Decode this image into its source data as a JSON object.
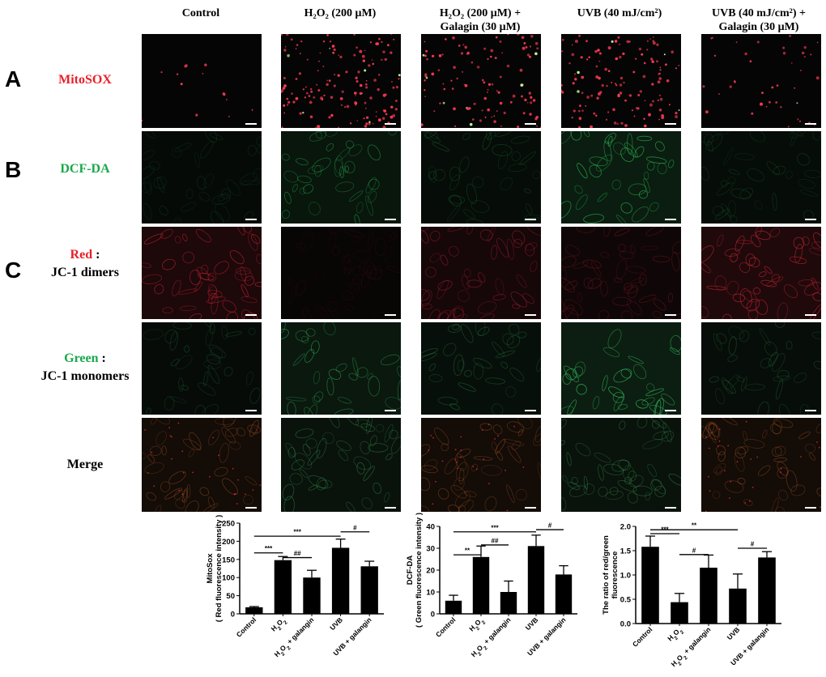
{
  "columns": [
    {
      "line1": "Control",
      "line2": ""
    },
    {
      "line1": "H₂O₂ (200 μM)",
      "line2": ""
    },
    {
      "line1": "H₂O₂ (200 μM) +",
      "line2": "Galagin (30 μM)"
    },
    {
      "line1": "UVB (40 mJ/cm²)",
      "line2": ""
    },
    {
      "line1": "UVB (40 mJ/cm²) +",
      "line2": "Galagin (30 μM)"
    }
  ],
  "panel_letters": {
    "a": "A",
    "b": "B",
    "c": "C"
  },
  "row_labels": {
    "mitosox": "MitoSOX",
    "dcfda": "DCF-DA",
    "red_word": "Red",
    "red_rest": " :",
    "red_line2": "JC-1 dimers",
    "green_word": "Green",
    "green_rest": " :",
    "green_line2": "JC-1 monomers",
    "merge": "Merge"
  },
  "colors": {
    "red": "#e8202a",
    "green": "#1aa84a",
    "bar": "#000000"
  },
  "chart_data": [
    {
      "type": "bar",
      "ylabel": "MitoSox",
      "ylabel2": "( Red fluorescence intensity )",
      "categories": [
        "Control",
        "H2O2",
        "H2O2 + galangin",
        "UVB",
        "UVB + galangin"
      ],
      "values": [
        18,
        148,
        100,
        182,
        131
      ],
      "errors": [
        2,
        10,
        20,
        24,
        14
      ],
      "ylim": [
        0,
        250
      ],
      "yticks": [
        "0",
        "50",
        "100",
        "150",
        "200",
        "250"
      ],
      "brackets": [
        {
          "from": 0,
          "to": 1,
          "y": 168,
          "label": "***"
        },
        {
          "from": 0,
          "to": 3,
          "y": 214,
          "label": "***"
        },
        {
          "from": 1,
          "to": 2,
          "y": 155,
          "label": "##"
        },
        {
          "from": 3,
          "to": 4,
          "y": 226,
          "label": "#"
        }
      ]
    },
    {
      "type": "bar",
      "ylabel": "DCF-DA",
      "ylabel2": "( Green fluorescence intensity )",
      "categories": [
        "Control",
        "H2O2",
        "H2O2 + galangin",
        "UVB",
        "UVB + galangin"
      ],
      "values": [
        6,
        26,
        10,
        31,
        18
      ],
      "errors": [
        2.5,
        5,
        5,
        5,
        4
      ],
      "ylim": [
        0,
        40
      ],
      "yticks": [
        "0",
        "10",
        "20",
        "30",
        "40"
      ],
      "brackets": [
        {
          "from": 0,
          "to": 1,
          "y": 27,
          "label": "**"
        },
        {
          "from": 0,
          "to": 3,
          "y": 37.5,
          "label": "***"
        },
        {
          "from": 1,
          "to": 2,
          "y": 31.5,
          "label": "##"
        },
        {
          "from": 3,
          "to": 4,
          "y": 38.5,
          "label": "#"
        }
      ]
    },
    {
      "type": "bar",
      "ylabel": "The ratio of red/green",
      "ylabel2": "fluorescence",
      "categories": [
        "Control",
        "H2O2",
        "H2O2 + galangin",
        "UVB",
        "UVB + galangin"
      ],
      "values": [
        1.58,
        0.44,
        1.15,
        0.72,
        1.36
      ],
      "errors": [
        0.22,
        0.18,
        0.26,
        0.3,
        0.12
      ],
      "ylim": [
        0,
        2.0
      ],
      "yticks": [
        "0.0",
        "0.5",
        "1.0",
        "1.5",
        "2.0"
      ],
      "brackets": [
        {
          "from": 0,
          "to": 1,
          "y": 1.85,
          "label": "***"
        },
        {
          "from": 0,
          "to": 3,
          "y": 1.93,
          "label": "**"
        },
        {
          "from": 1,
          "to": 2,
          "y": 1.42,
          "label": "#"
        },
        {
          "from": 3,
          "to": 4,
          "y": 1.55,
          "label": "#"
        }
      ]
    }
  ]
}
